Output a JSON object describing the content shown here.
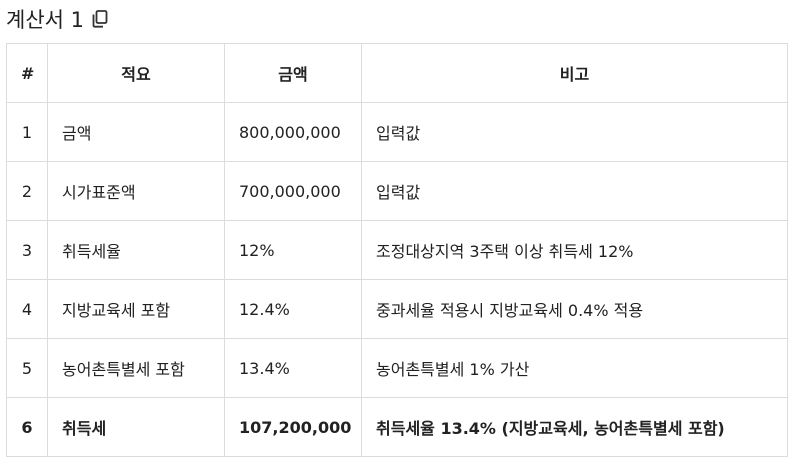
{
  "header": {
    "title": "계산서 1",
    "copy_icon": "copy-icon"
  },
  "table": {
    "columns": [
      "#",
      "적요",
      "금액",
      "비고"
    ],
    "rows": [
      {
        "no": "1",
        "item": "금액",
        "amount": "800,000,000",
        "note": "입력값"
      },
      {
        "no": "2",
        "item": "시가표준액",
        "amount": "700,000,000",
        "note": "입력값"
      },
      {
        "no": "3",
        "item": "취득세율",
        "amount": "12%",
        "note": "조정대상지역 3주택 이상 취득세 12%"
      },
      {
        "no": "4",
        "item": "지방교육세 포함",
        "amount": "12.4%",
        "note": "중과세율 적용시 지방교육세 0.4% 적용"
      },
      {
        "no": "5",
        "item": "농어촌특별세 포함",
        "amount": "13.4%",
        "note": "농어촌특별세 1% 가산"
      },
      {
        "no": "6",
        "item": "취득세",
        "amount": "107,200,000",
        "note": "취득세율 13.4% (지방교육세, 농어촌특별세 포함)"
      }
    ]
  }
}
